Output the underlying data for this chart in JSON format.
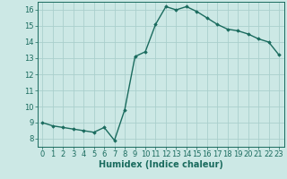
{
  "x": [
    0,
    1,
    2,
    3,
    4,
    5,
    6,
    7,
    8,
    9,
    10,
    11,
    12,
    13,
    14,
    15,
    16,
    17,
    18,
    19,
    20,
    21,
    22,
    23
  ],
  "y": [
    9.0,
    8.8,
    8.7,
    8.6,
    8.5,
    8.4,
    8.7,
    7.9,
    9.8,
    13.1,
    13.4,
    15.1,
    16.2,
    16.0,
    16.2,
    15.9,
    15.5,
    15.1,
    14.8,
    14.7,
    14.5,
    14.2,
    14.0,
    13.2
  ],
  "line_color": "#1a6b5e",
  "marker": "D",
  "marker_size": 1.8,
  "bg_color": "#cce8e5",
  "grid_color": "#aacfcc",
  "xlabel": "Humidex (Indice chaleur)",
  "xlim": [
    -0.5,
    23.5
  ],
  "ylim": [
    7.5,
    16.5
  ],
  "yticks": [
    8,
    9,
    10,
    11,
    12,
    13,
    14,
    15,
    16
  ],
  "xticks": [
    0,
    1,
    2,
    3,
    4,
    5,
    6,
    7,
    8,
    9,
    10,
    11,
    12,
    13,
    14,
    15,
    16,
    17,
    18,
    19,
    20,
    21,
    22,
    23
  ],
  "tick_label_fontsize": 6.0,
  "xlabel_fontsize": 7.0,
  "line_width": 1.0
}
